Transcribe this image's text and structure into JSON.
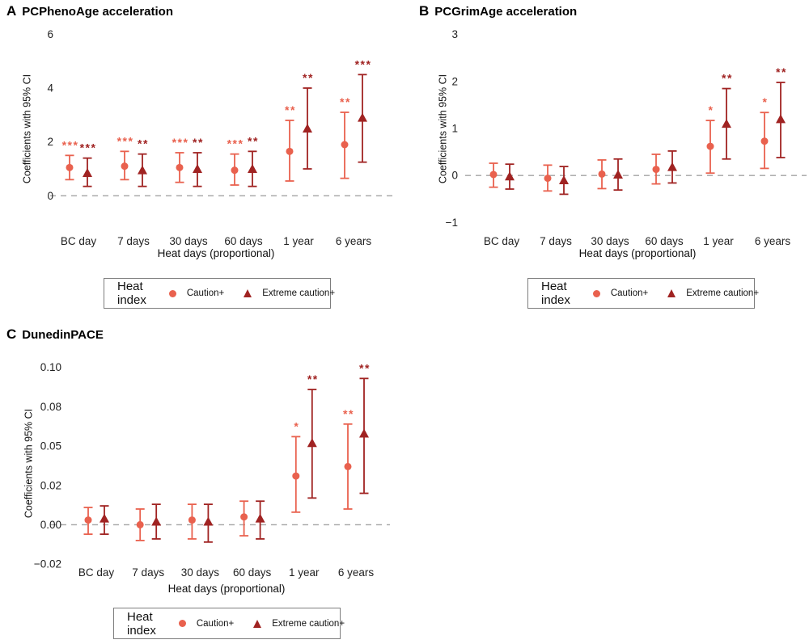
{
  "colors": {
    "caution": "#E9614E",
    "extreme": "#A02322",
    "zero_line": "#A3A3A3",
    "text": "#000000"
  },
  "legend": {
    "title": "Heat index",
    "items": [
      {
        "label": "Caution+",
        "marker": "circle-icon",
        "color": "#E9614E"
      },
      {
        "label": "Extreme caution+",
        "marker": "triangle-icon",
        "color": "#A02322"
      }
    ],
    "position": "bottom"
  },
  "chart_data": [
    {
      "panel_label": "A",
      "title": "PCPhenoAge acceleration",
      "type": "scatter",
      "error_bars": true,
      "grid": false,
      "ylabel": "Coefficients with 95% CI",
      "xlabel": "Heat days (proportional)",
      "categories": [
        "BC day",
        "7 days",
        "30 days",
        "60 days",
        "1 year",
        "6 years"
      ],
      "ylim": [
        -1.25,
        6.25
      ],
      "yticks": [
        {
          "v": 0,
          "label": "0"
        },
        {
          "v": 2,
          "label": "2"
        },
        {
          "v": 4,
          "label": "4"
        },
        {
          "v": 6,
          "label": "6"
        }
      ],
      "zero_line": 0,
      "series": [
        {
          "name": "Caution+",
          "marker": "circle",
          "color": "#E9614E",
          "points": [
            {
              "est": 1.05,
              "lo": 0.6,
              "hi": 1.5,
              "sig": "***"
            },
            {
              "est": 1.1,
              "lo": 0.6,
              "hi": 1.65,
              "sig": "***"
            },
            {
              "est": 1.05,
              "lo": 0.5,
              "hi": 1.6,
              "sig": "***"
            },
            {
              "est": 0.95,
              "lo": 0.4,
              "hi": 1.55,
              "sig": "***"
            },
            {
              "est": 1.65,
              "lo": 0.55,
              "hi": 2.8,
              "sig": "**"
            },
            {
              "est": 1.9,
              "lo": 0.65,
              "hi": 3.1,
              "sig": "**"
            }
          ]
        },
        {
          "name": "Extreme caution+",
          "marker": "triangle",
          "color": "#A02322",
          "points": [
            {
              "est": 0.85,
              "lo": 0.35,
              "hi": 1.4,
              "sig": "***"
            },
            {
              "est": 0.95,
              "lo": 0.35,
              "hi": 1.55,
              "sig": "**"
            },
            {
              "est": 1.0,
              "lo": 0.35,
              "hi": 1.6,
              "sig": "**"
            },
            {
              "est": 1.0,
              "lo": 0.35,
              "hi": 1.65,
              "sig": "**"
            },
            {
              "est": 2.5,
              "lo": 1.0,
              "hi": 4.0,
              "sig": "**"
            },
            {
              "est": 2.9,
              "lo": 1.25,
              "hi": 4.5,
              "sig": "***"
            }
          ]
        }
      ]
    },
    {
      "panel_label": "B",
      "title": "PCGrimAge acceleration",
      "type": "scatter",
      "error_bars": true,
      "grid": false,
      "ylabel": "Coefficients with 95% CI",
      "xlabel": "Heat days (proportional)",
      "categories": [
        "BC day",
        "7 days",
        "30 days",
        "60 days",
        "1 year",
        "6 years"
      ],
      "ylim": [
        -1.15,
        3.15
      ],
      "yticks": [
        {
          "v": -1,
          "label": "−1"
        },
        {
          "v": 0,
          "label": "0"
        },
        {
          "v": 1,
          "label": "1"
        },
        {
          "v": 2,
          "label": "2"
        },
        {
          "v": 3,
          "label": "3"
        }
      ],
      "zero_line": 0,
      "series": [
        {
          "name": "Caution+",
          "marker": "circle",
          "color": "#E9614E",
          "points": [
            {
              "est": 0.02,
              "lo": -0.25,
              "hi": 0.26,
              "sig": ""
            },
            {
              "est": -0.06,
              "lo": -0.33,
              "hi": 0.22,
              "sig": ""
            },
            {
              "est": 0.03,
              "lo": -0.28,
              "hi": 0.33,
              "sig": ""
            },
            {
              "est": 0.13,
              "lo": -0.18,
              "hi": 0.45,
              "sig": ""
            },
            {
              "est": 0.62,
              "lo": 0.05,
              "hi": 1.17,
              "sig": "*"
            },
            {
              "est": 0.73,
              "lo": 0.15,
              "hi": 1.34,
              "sig": "*"
            }
          ]
        },
        {
          "name": "Extreme caution+",
          "marker": "triangle",
          "color": "#A02322",
          "points": [
            {
              "est": -0.02,
              "lo": -0.29,
              "hi": 0.24,
              "sig": ""
            },
            {
              "est": -0.1,
              "lo": -0.4,
              "hi": 0.19,
              "sig": ""
            },
            {
              "est": 0.02,
              "lo": -0.31,
              "hi": 0.35,
              "sig": ""
            },
            {
              "est": 0.18,
              "lo": -0.16,
              "hi": 0.52,
              "sig": ""
            },
            {
              "est": 1.1,
              "lo": 0.35,
              "hi": 1.85,
              "sig": "**"
            },
            {
              "est": 1.2,
              "lo": 0.38,
              "hi": 1.98,
              "sig": "**"
            }
          ]
        }
      ]
    },
    {
      "panel_label": "C",
      "title": "DunedinPACE",
      "type": "scatter",
      "error_bars": true,
      "grid": false,
      "ylabel": "Coefficients with 95% CI",
      "xlabel": "Heat days (proportional)",
      "categories": [
        "BC day",
        "7 days",
        "30 days",
        "60 days",
        "1 year",
        "6 years"
      ],
      "ylim": [
        -0.027,
        0.105
      ],
      "yticks": [
        {
          "v": -0.025,
          "label": "−0.02"
        },
        {
          "v": 0,
          "label": "0.00"
        },
        {
          "v": 0.025,
          "label": "0.02"
        },
        {
          "v": 0.05,
          "label": "0.05"
        },
        {
          "v": 0.075,
          "label": "0.08"
        },
        {
          "v": 0.1,
          "label": "0.10"
        }
      ],
      "zero_line": 0,
      "series": [
        {
          "name": "Caution+",
          "marker": "circle",
          "color": "#E9614E",
          "points": [
            {
              "est": 0.003,
              "lo": -0.006,
              "hi": 0.011,
              "sig": ""
            },
            {
              "est": 0.0,
              "lo": -0.01,
              "hi": 0.01,
              "sig": ""
            },
            {
              "est": 0.003,
              "lo": -0.009,
              "hi": 0.013,
              "sig": ""
            },
            {
              "est": 0.005,
              "lo": -0.007,
              "hi": 0.015,
              "sig": ""
            },
            {
              "est": 0.031,
              "lo": 0.008,
              "hi": 0.056,
              "sig": "*"
            },
            {
              "est": 0.037,
              "lo": 0.01,
              "hi": 0.064,
              "sig": "**"
            }
          ]
        },
        {
          "name": "Extreme caution+",
          "marker": "triangle",
          "color": "#A02322",
          "points": [
            {
              "est": 0.004,
              "lo": -0.006,
              "hi": 0.012,
              "sig": ""
            },
            {
              "est": 0.002,
              "lo": -0.009,
              "hi": 0.013,
              "sig": ""
            },
            {
              "est": 0.002,
              "lo": -0.011,
              "hi": 0.013,
              "sig": ""
            },
            {
              "est": 0.004,
              "lo": -0.009,
              "hi": 0.015,
              "sig": ""
            },
            {
              "est": 0.052,
              "lo": 0.017,
              "hi": 0.086,
              "sig": "**"
            },
            {
              "est": 0.058,
              "lo": 0.02,
              "hi": 0.093,
              "sig": "**"
            }
          ]
        }
      ]
    }
  ]
}
